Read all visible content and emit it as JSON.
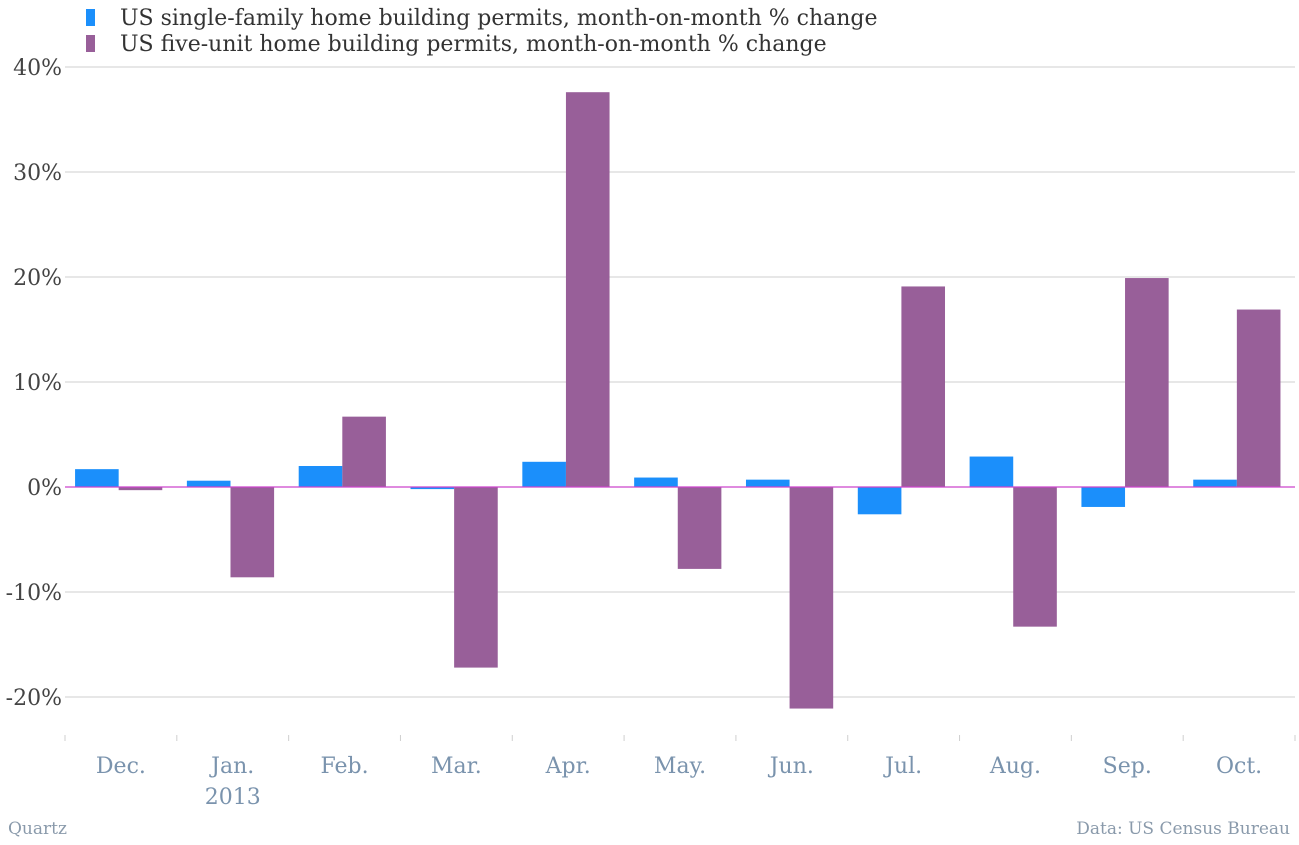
{
  "colors": {
    "single": "#1b8ffb",
    "five": "#985f99",
    "grid": "#cfcfcf",
    "zero": "#cc44cc",
    "axis_text": "#7a93ad"
  },
  "footer": {
    "left": "Quartz",
    "right": "Data: US Census Bureau"
  },
  "chart_data": {
    "type": "bar",
    "categories": [
      "Dec.",
      "Jan.",
      "Feb.",
      "Mar.",
      "Apr.",
      "May.",
      "Jun.",
      "Jul.",
      "Aug.",
      "Sep.",
      "Oct."
    ],
    "category_sublabels": [
      "",
      "2013",
      "",
      "",
      "",
      "",
      "",
      "",
      "",
      "",
      ""
    ],
    "series": [
      {
        "name": "US single-family home building permits, month-on-month % change",
        "values": [
          1.7,
          0.6,
          2.0,
          -0.2,
          2.4,
          0.9,
          0.7,
          -2.6,
          2.9,
          -1.9,
          0.7
        ]
      },
      {
        "name": "US five-unit home building permits, month-on-month % change",
        "values": [
          -0.3,
          -8.6,
          6.7,
          -17.2,
          37.6,
          -7.8,
          -21.1,
          19.1,
          -13.3,
          19.9,
          16.9
        ]
      }
    ],
    "yticks": [
      40,
      30,
      20,
      10,
      0,
      -10,
      -20
    ],
    "ytick_labels": [
      "40%",
      "30%",
      "20%",
      "10%",
      "0%",
      "-10%",
      "-20%"
    ],
    "ylim": [
      -23.5,
      40
    ],
    "xlabel": "",
    "ylabel": "",
    "title": "",
    "grid": true,
    "legend_position": "top-left"
  }
}
